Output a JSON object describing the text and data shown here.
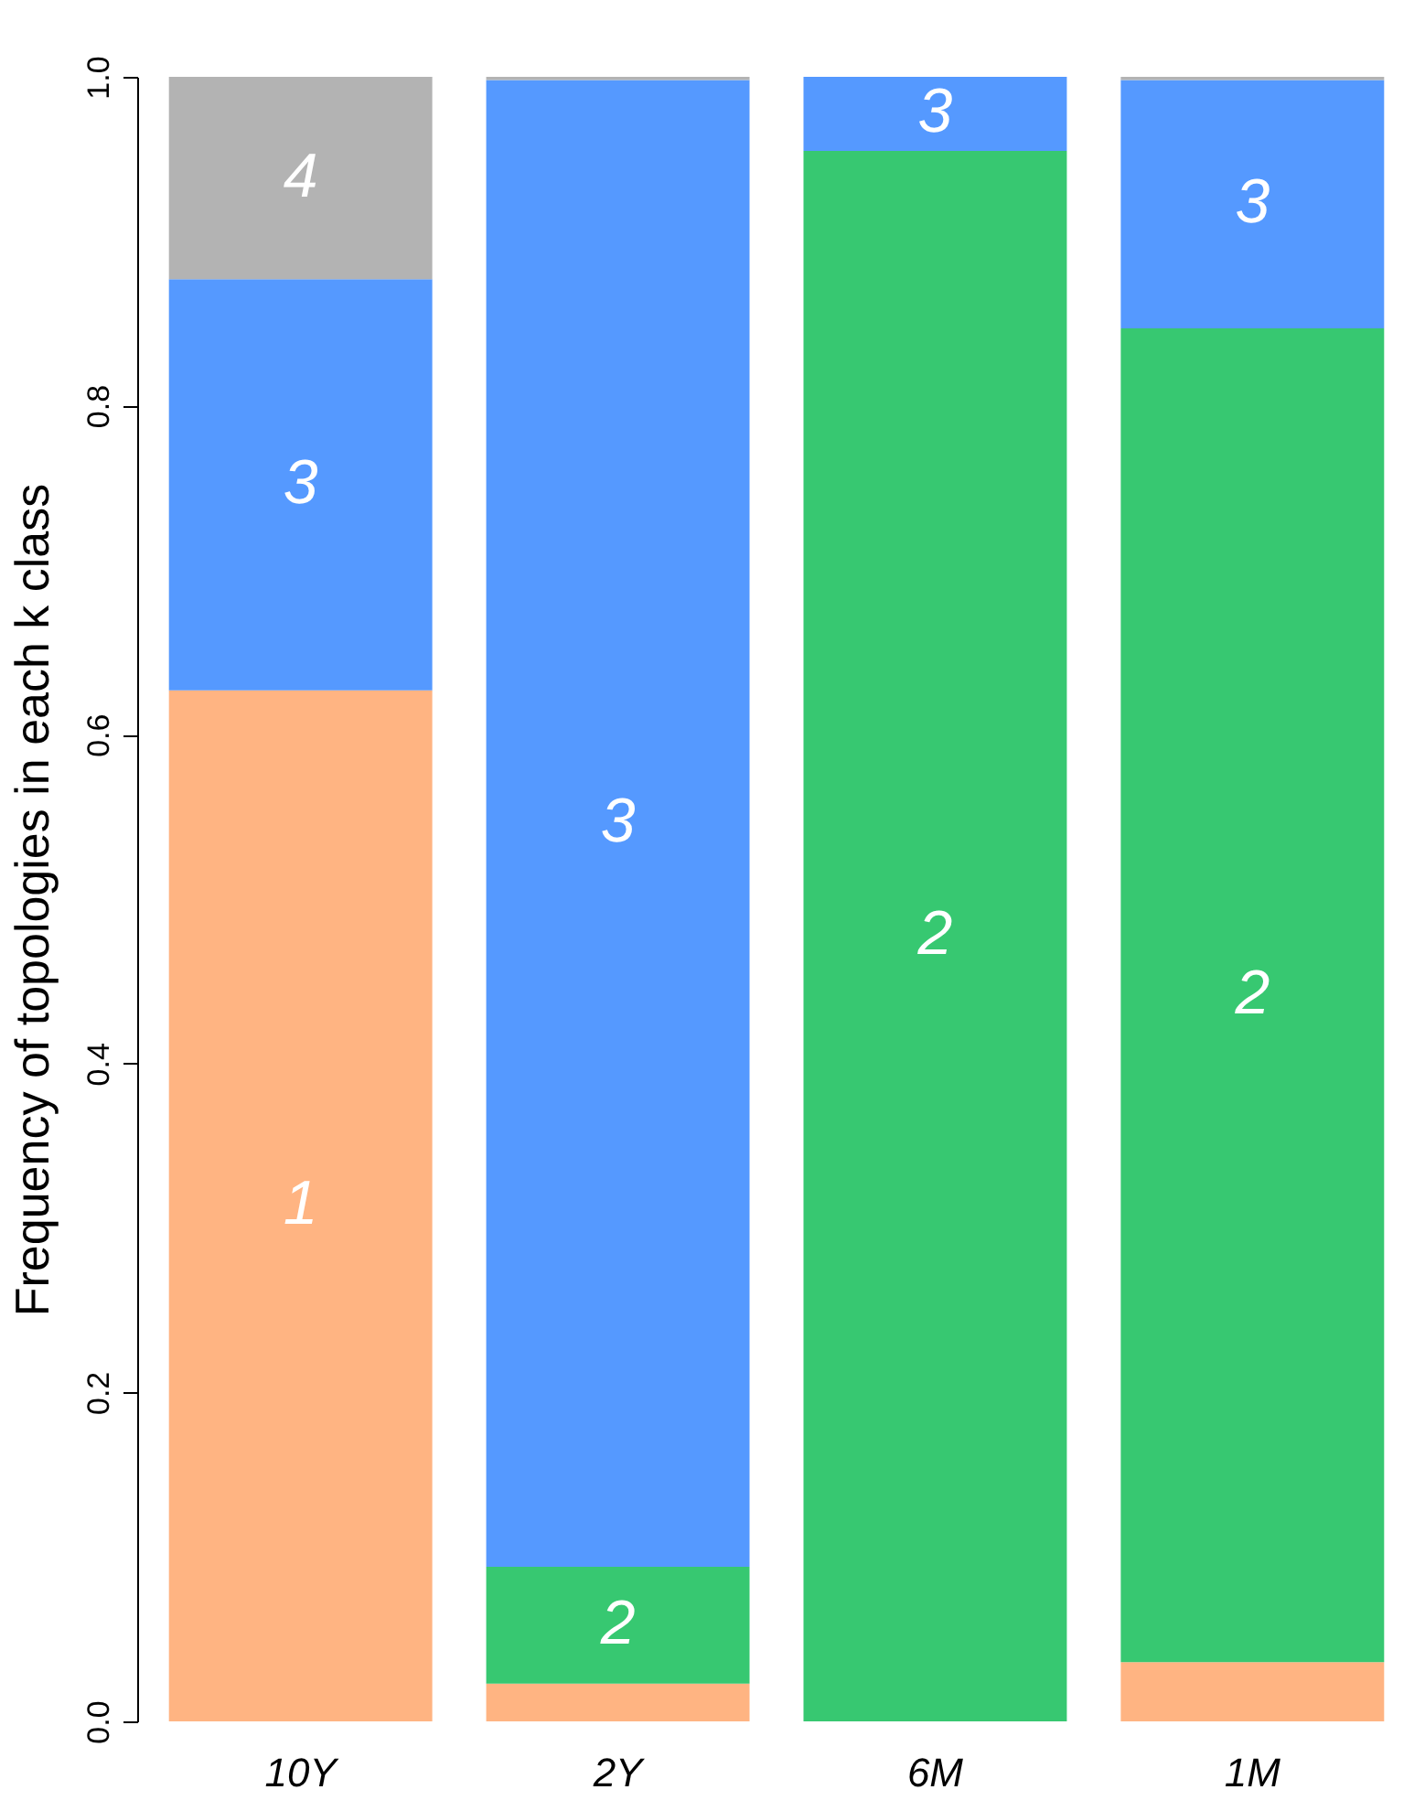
{
  "chart_data": {
    "type": "bar",
    "stacked": true,
    "ylabel": "Frequency of topologies in each k class",
    "categories": [
      "10Y",
      "2Y",
      "6M",
      "1M"
    ],
    "series": [
      {
        "name": "1",
        "color": "#ffb482",
        "values": [
          0.627,
          0.023,
          0,
          0.036
        ]
      },
      {
        "name": "2",
        "color": "#37c871",
        "values": [
          0,
          0.071,
          0.955,
          0.811
        ]
      },
      {
        "name": "3",
        "color": "#5599ff",
        "values": [
          0.25,
          0.904,
          0.045,
          0.151
        ]
      },
      {
        "name": "4",
        "color": "#b3b3b3",
        "values": [
          0.123,
          0.002,
          0,
          0.002
        ]
      }
    ],
    "ylim": [
      0,
      1
    ],
    "yticks": [
      {
        "value": 0,
        "label": "0.0"
      },
      0.2,
      0.4,
      0.6,
      0.8,
      {
        "value": 1,
        "label": "1.0"
      }
    ],
    "grid": false,
    "legend": false
  }
}
